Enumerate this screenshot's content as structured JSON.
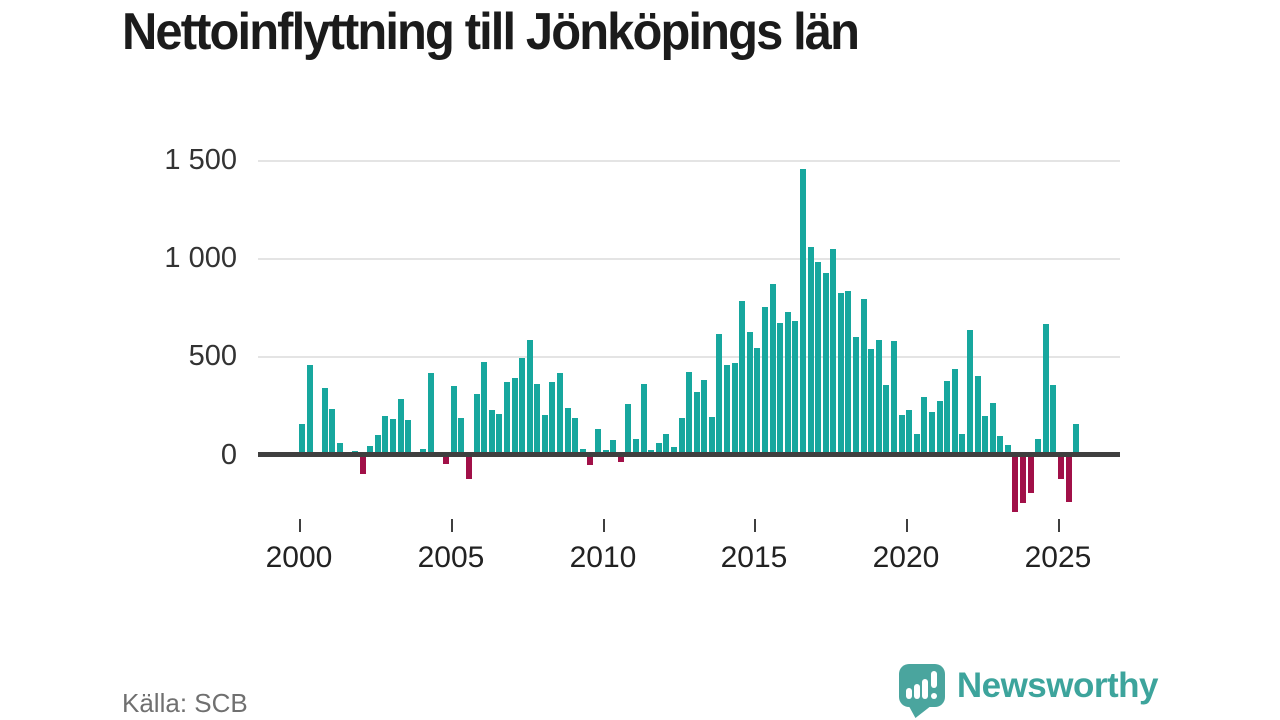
{
  "title": "Nettoinflyttning till Jönköpings län",
  "source": "Källa: SCB",
  "branding": {
    "name": "Newsworthy",
    "icon": "newsworthy-speech-bubble-chart-icon"
  },
  "colors": {
    "positive_bar": "#17a79e",
    "negative_bar": "#a11048",
    "grid": "#e4e4e4",
    "axis": "#3f3f3f",
    "brand_teal": "#4aa59e",
    "title_text": "#1b1b1b",
    "source_text": "#707070"
  },
  "chart_data": {
    "type": "bar",
    "title": "Nettoinflyttning till Jönköpings län",
    "xlabel": "",
    "ylabel": "",
    "frequency": "quarterly",
    "start_period": "2000 Q1",
    "end_period": "2025 Q3",
    "ylim": [
      -350,
      1550
    ],
    "grid": "horizontal",
    "legend": "none",
    "y_ticks": [
      0,
      500,
      1000,
      1500
    ],
    "y_tick_labels": [
      "0",
      "500",
      "1 000",
      "1 500"
    ],
    "x_tick_labels": [
      "2000",
      "2005",
      "2010",
      "2015",
      "2020",
      "2025"
    ],
    "values": [
      160,
      460,
      10,
      340,
      235,
      60,
      5,
      20,
      -95,
      45,
      100,
      200,
      185,
      285,
      178,
      15,
      30,
      420,
      5,
      -45,
      352,
      187,
      -120,
      310,
      476,
      230,
      208,
      374,
      391,
      493,
      587,
      360,
      204,
      371,
      420,
      241,
      187,
      30,
      -51,
      131,
      25,
      76,
      -34,
      260,
      80,
      360,
      24,
      63,
      105,
      41,
      190,
      425,
      320,
      383,
      195,
      616,
      459,
      468,
      786,
      629,
      544,
      757,
      870,
      675,
      731,
      685,
      1457,
      1059,
      984,
      929,
      1052,
      827,
      839,
      600,
      795,
      540,
      585,
      358,
      583,
      204,
      229,
      105,
      295,
      221,
      274,
      378,
      440,
      105,
      640,
      403,
      199,
      263,
      99,
      50,
      -290,
      -243,
      -195,
      82,
      670,
      355,
      -124,
      -238,
      159
    ]
  }
}
